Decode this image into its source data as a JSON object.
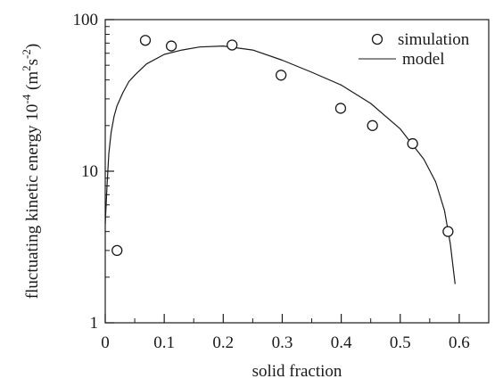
{
  "chart_data": {
    "type": "scatter",
    "title": "",
    "xlabel": "solid fraction",
    "ylabel": {
      "prefix": "fluctuating kinetic energy  10",
      "prefix_sup": "-4",
      "unit_open": " (m",
      "unit_sup1": "2",
      "unit_mid": "s",
      "unit_sup2": "-2",
      "unit_close": ")"
    },
    "xlim": [
      0,
      0.65
    ],
    "ylim": [
      1,
      100
    ],
    "yscale": "log",
    "x_ticks": [
      0,
      0.1,
      0.2,
      0.3,
      0.4,
      0.5,
      0.6
    ],
    "x_tick_labels": [
      "0",
      "0.1",
      "0.2",
      "0.3",
      "0.4",
      "0.5",
      "0.6"
    ],
    "y_ticks": [
      1,
      10,
      100
    ],
    "y_tick_labels": [
      "1",
      "10",
      "100"
    ],
    "grid": false,
    "legend_position": "top-right",
    "series": [
      {
        "name": "simulation",
        "kind": "scatter",
        "marker": "open-circle",
        "points": [
          {
            "x": 0.02,
            "y": 3.0
          },
          {
            "x": 0.068,
            "y": 73
          },
          {
            "x": 0.112,
            "y": 67
          },
          {
            "x": 0.215,
            "y": 68
          },
          {
            "x": 0.298,
            "y": 43
          },
          {
            "x": 0.399,
            "y": 26
          },
          {
            "x": 0.453,
            "y": 20
          },
          {
            "x": 0.521,
            "y": 15.2
          },
          {
            "x": 0.581,
            "y": 4.0
          }
        ]
      },
      {
        "name": "model",
        "kind": "line",
        "points": [
          {
            "x": 0.0,
            "y": 4.5
          },
          {
            "x": 0.003,
            "y": 8
          },
          {
            "x": 0.006,
            "y": 13
          },
          {
            "x": 0.01,
            "y": 18
          },
          {
            "x": 0.015,
            "y": 23
          },
          {
            "x": 0.02,
            "y": 27
          },
          {
            "x": 0.03,
            "y": 33
          },
          {
            "x": 0.04,
            "y": 39
          },
          {
            "x": 0.05,
            "y": 43
          },
          {
            "x": 0.07,
            "y": 51
          },
          {
            "x": 0.1,
            "y": 59
          },
          {
            "x": 0.13,
            "y": 63
          },
          {
            "x": 0.16,
            "y": 66
          },
          {
            "x": 0.2,
            "y": 67
          },
          {
            "x": 0.25,
            "y": 63
          },
          {
            "x": 0.3,
            "y": 54
          },
          {
            "x": 0.35,
            "y": 45
          },
          {
            "x": 0.4,
            "y": 37
          },
          {
            "x": 0.45,
            "y": 28
          },
          {
            "x": 0.5,
            "y": 19
          },
          {
            "x": 0.54,
            "y": 12
          },
          {
            "x": 0.56,
            "y": 8.5
          },
          {
            "x": 0.575,
            "y": 5.5
          },
          {
            "x": 0.585,
            "y": 3.3
          },
          {
            "x": 0.593,
            "y": 1.8
          }
        ]
      }
    ]
  }
}
